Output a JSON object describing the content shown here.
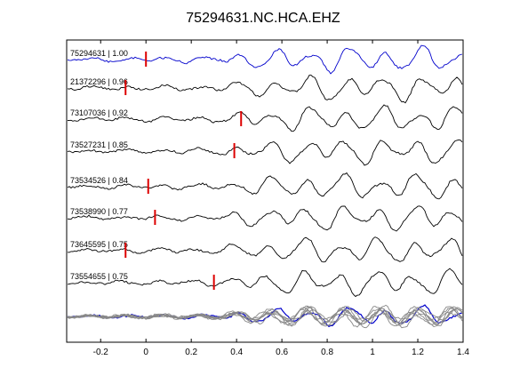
{
  "chart_data": {
    "type": "line",
    "title": "75294631.NC.HCA.EHZ",
    "xlim": [
      -0.35,
      1.4
    ],
    "xticks": [
      -0.2,
      0,
      0.2,
      0.4,
      0.6,
      0.8,
      1,
      1.2,
      1.4
    ],
    "xtick_labels": [
      "-0.2",
      "0",
      "0.2",
      "0.4",
      "0.6",
      "0.8",
      "1",
      "1.2",
      "1.4"
    ],
    "grid": false,
    "colors": {
      "reference": "#0000cc",
      "trace": "#000000",
      "marker": "#dd0000",
      "overlay": "#888888"
    },
    "traces": [
      {
        "label": "75294631 | 1.00",
        "pick_time": 0.0,
        "color": "#0000cc"
      },
      {
        "label": "21372296 | 0.96",
        "pick_time": -0.09,
        "color": "#000000"
      },
      {
        "label": "73107036 | 0.92",
        "pick_time": 0.42,
        "color": "#000000"
      },
      {
        "label": "73527231 | 0.85",
        "pick_time": 0.39,
        "color": "#000000"
      },
      {
        "label": "73534526 | 0.84",
        "pick_time": 0.01,
        "color": "#000000"
      },
      {
        "label": "73538990 | 0.77",
        "pick_time": 0.04,
        "color": "#000000"
      },
      {
        "label": "73645595 | 0.75",
        "pick_time": -0.09,
        "color": "#000000"
      },
      {
        "label": "73554655 | 0.75",
        "pick_time": 0.3,
        "color": "#000000"
      }
    ]
  }
}
